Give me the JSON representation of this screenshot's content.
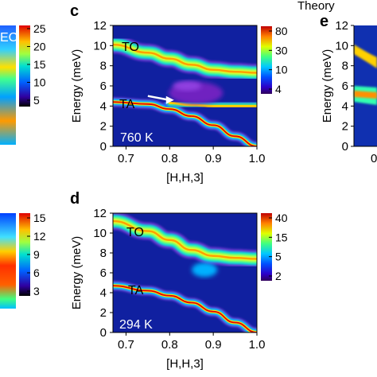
{
  "header": {
    "theory_label": "Theory"
  },
  "chart_data": [
    {
      "type": "heatmap",
      "panel_letter": "c",
      "xlabel": "[H,H,3]",
      "ylabel": "Energy (meV)",
      "xlim": [
        0.67,
        1.0
      ],
      "ylim": [
        0,
        12
      ],
      "xticks": [
        "0.7",
        "0.8",
        "0.9",
        "1.0"
      ],
      "yticks": [
        "0",
        "2",
        "4",
        "6",
        "8",
        "10",
        "12"
      ],
      "temperature_label": "760 K",
      "branch_labels": [
        "TO",
        "TA"
      ],
      "arrow": {
        "from": [
          0.75,
          5.0
        ],
        "to": [
          0.81,
          4.6
        ]
      },
      "colorbar": {
        "ticks": [
          "80",
          "30",
          "10",
          "4"
        ],
        "scale": "log"
      },
      "branches": [
        {
          "name": "TO",
          "x": [
            0.67,
            0.75,
            0.8,
            0.85,
            0.9,
            0.95,
            1.0
          ],
          "y": [
            10.1,
            9.3,
            8.7,
            8.1,
            7.6,
            7.4,
            7.3
          ]
        },
        {
          "name": "TA",
          "x": [
            0.67,
            0.75,
            0.8,
            0.85,
            0.9,
            0.95,
            1.0
          ],
          "y": [
            4.4,
            4.2,
            3.7,
            3.0,
            2.1,
            1.0,
            0.0
          ]
        },
        {
          "name": "flat",
          "x": [
            0.8,
            0.85,
            0.9,
            0.95,
            1.0
          ],
          "y": [
            4.3,
            4.1,
            4.0,
            4.0,
            4.0
          ]
        }
      ]
    },
    {
      "type": "heatmap",
      "panel_letter": "d",
      "xlabel": "[H,H,3]",
      "ylabel": "Energy (meV)",
      "xlim": [
        0.67,
        1.0
      ],
      "ylim": [
        0,
        12
      ],
      "xticks": [
        "0.7",
        "0.8",
        "0.9",
        "1.0"
      ],
      "yticks": [
        "0",
        "2",
        "4",
        "6",
        "8",
        "10",
        "12"
      ],
      "temperature_label": "294 K",
      "branch_labels": [
        "TO",
        "TA"
      ],
      "colorbar": {
        "ticks": [
          "40",
          "15",
          "5",
          "2"
        ],
        "scale": "log"
      },
      "branches": [
        {
          "name": "TO",
          "x": [
            0.67,
            0.75,
            0.8,
            0.85,
            0.9,
            0.95,
            1.0
          ],
          "y": [
            11.2,
            10.2,
            9.3,
            8.3,
            7.7,
            7.5,
            7.4
          ]
        },
        {
          "name": "TA",
          "x": [
            0.67,
            0.75,
            0.8,
            0.85,
            0.9,
            0.95,
            1.0
          ],
          "y": [
            4.7,
            4.2,
            3.7,
            3.0,
            2.1,
            1.0,
            0.0
          ]
        }
      ]
    },
    {
      "type": "heatmap",
      "panel_letter": "",
      "colorbar": {
        "ticks": [
          "25",
          "20",
          "15",
          "10",
          "5"
        ]
      },
      "visible_label": "EC"
    },
    {
      "type": "heatmap",
      "panel_letter": "",
      "colorbar": {
        "ticks": [
          "15",
          "12",
          "9",
          "6",
          "3"
        ]
      }
    },
    {
      "type": "heatmap",
      "panel_letter": "e",
      "ylabel": "Energy (meV)",
      "yticks": [
        "0",
        "2",
        "4",
        "6",
        "8",
        "10",
        "12"
      ],
      "xticks": [
        "0"
      ]
    }
  ]
}
